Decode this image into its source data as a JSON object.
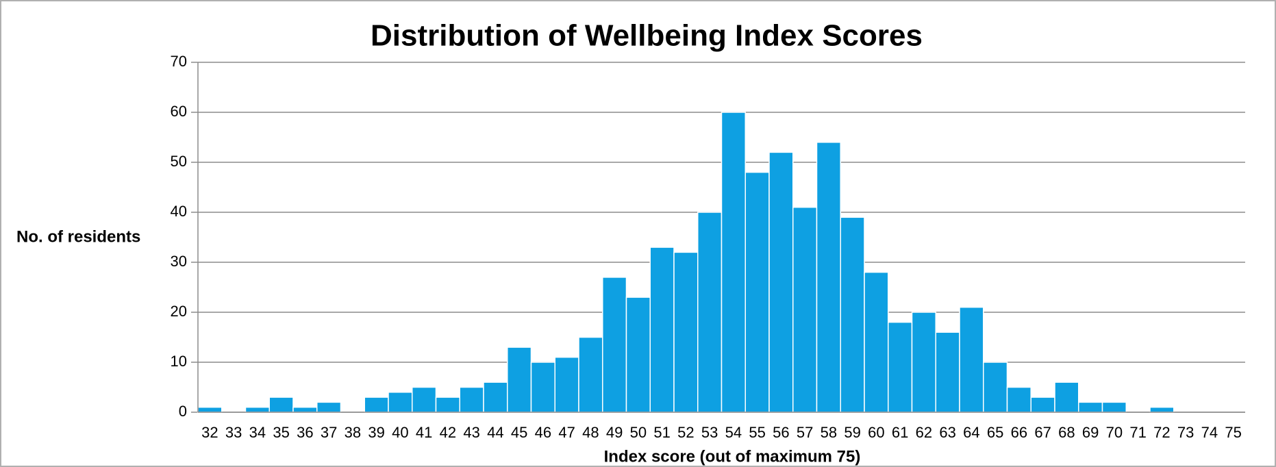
{
  "chart_data": {
    "type": "bar",
    "title": "Distribution of Wellbeing Index Scores",
    "y_label": "No. of residents",
    "x_label": "Index score (out of maximum 75)",
    "categories": [
      "32",
      "33",
      "34",
      "35",
      "36",
      "37",
      "38",
      "39",
      "40",
      "41",
      "42",
      "43",
      "44",
      "45",
      "46",
      "47",
      "48",
      "49",
      "50",
      "51",
      "52",
      "53",
      "54",
      "55",
      "56",
      "57",
      "58",
      "59",
      "60",
      "61",
      "62",
      "63",
      "64",
      "65",
      "66",
      "67",
      "68",
      "69",
      "70",
      "71",
      "72",
      "73",
      "74",
      "75"
    ],
    "values": [
      1,
      0,
      1,
      3,
      1,
      2,
      0,
      3,
      4,
      5,
      3,
      5,
      6,
      13,
      10,
      11,
      15,
      27,
      23,
      33,
      32,
      40,
      60,
      48,
      52,
      41,
      54,
      39,
      28,
      18,
      20,
      16,
      21,
      10,
      5,
      3,
      6,
      2,
      2,
      0,
      1,
      0,
      0,
      0
    ],
    "color": "#0ea0e2",
    "ylim": [
      0,
      70
    ],
    "yticks": [
      0,
      10,
      20,
      30,
      40,
      50,
      60,
      70
    ],
    "grid": true
  }
}
